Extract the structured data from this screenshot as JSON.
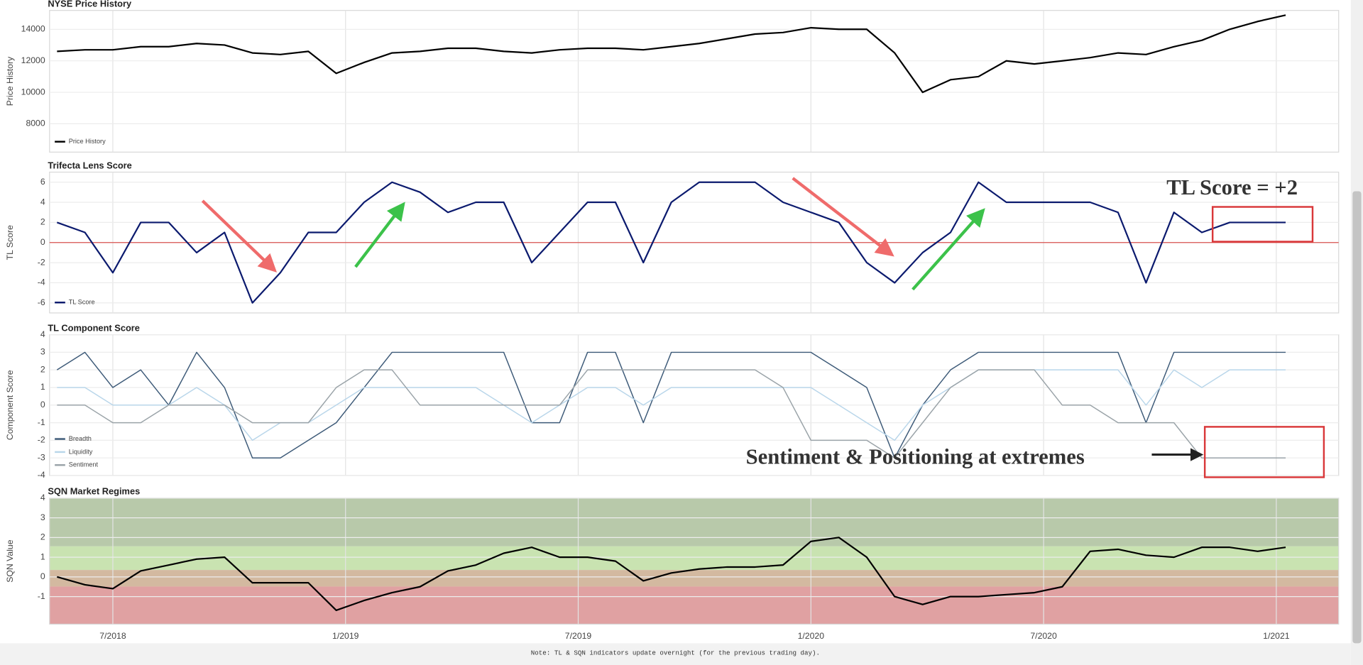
{
  "chart_data": [
    {
      "type": "line",
      "title": "NYSE Price History",
      "ylabel": "Price History",
      "legend": "lower left",
      "grid": true,
      "xlim": [
        2018.364,
        2021.134
      ],
      "x": [
        2018.38,
        2018.44,
        2018.5,
        2018.56,
        2018.62,
        2018.68,
        2018.74,
        2018.8,
        2018.86,
        2018.92,
        2018.98,
        2019.04,
        2019.1,
        2019.16,
        2019.22,
        2019.28,
        2019.34,
        2019.4,
        2019.46,
        2019.52,
        2019.58,
        2019.64,
        2019.7,
        2019.76,
        2019.82,
        2019.88,
        2019.94,
        2020,
        2020.06,
        2020.12,
        2020.18,
        2020.24,
        2020.3,
        2020.36,
        2020.42,
        2020.48,
        2020.54,
        2020.6,
        2020.66,
        2020.72,
        2020.78,
        2020.84,
        2020.9,
        2020.96,
        2021.02
      ],
      "ylim": [
        6200,
        15200
      ],
      "yticks": [
        8000,
        10000,
        12000,
        14000
      ],
      "series": [
        {
          "name": "Price History",
          "color": "#000000",
          "values": [
            12600,
            12700,
            12700,
            12900,
            12900,
            13100,
            13000,
            12500,
            12400,
            12600,
            11200,
            11900,
            12500,
            12600,
            12800,
            12800,
            12600,
            12500,
            12700,
            12800,
            12800,
            12700,
            12900,
            13100,
            13400,
            13700,
            13800,
            14100,
            14000,
            14000,
            12500,
            10000,
            10800,
            11000,
            12000,
            11800,
            12000,
            12200,
            12500,
            12400,
            12900,
            13300,
            14000,
            14500,
            14900
          ]
        }
      ]
    },
    {
      "type": "line",
      "title": "Trifecta Lens Score",
      "ylabel": "TL Score",
      "legend": "lower left",
      "grid": true,
      "xlim": [
        2018.364,
        2021.134
      ],
      "x": [
        2018.38,
        2018.44,
        2018.5,
        2018.56,
        2018.62,
        2018.68,
        2018.74,
        2018.8,
        2018.86,
        2018.92,
        2018.98,
        2019.04,
        2019.1,
        2019.16,
        2019.22,
        2019.28,
        2019.34,
        2019.4,
        2019.46,
        2019.52,
        2019.58,
        2019.64,
        2019.7,
        2019.76,
        2019.82,
        2019.88,
        2019.94,
        2020,
        2020.06,
        2020.12,
        2020.18,
        2020.24,
        2020.3,
        2020.36,
        2020.42,
        2020.48,
        2020.54,
        2020.6,
        2020.66,
        2020.72,
        2020.78,
        2020.84,
        2020.9,
        2020.96,
        2021.02
      ],
      "ylim": [
        -7,
        7
      ],
      "yticks": [
        -6,
        -4,
        -2,
        0,
        2,
        4,
        6
      ],
      "hline": {
        "value": 0,
        "color": "#d9534f"
      },
      "annotation": "TL Score = +2",
      "series": [
        {
          "name": "TL Score",
          "color": "#0b1a6e",
          "values": [
            2,
            1,
            -3,
            2,
            2,
            -1,
            1,
            -6,
            -3,
            1,
            1,
            4,
            6,
            5,
            3,
            4,
            4,
            -2,
            1,
            4,
            4,
            -2,
            4,
            6,
            6,
            6,
            4,
            3,
            2,
            -2,
            -4,
            -1,
            1,
            6,
            4,
            4,
            4,
            4,
            3,
            -4,
            3,
            1,
            2,
            2,
            2
          ]
        }
      ]
    },
    {
      "type": "line",
      "title": "TL Component Score",
      "ylabel": "Component Score",
      "legend": "lower left",
      "grid": true,
      "xlim": [
        2018.364,
        2021.134
      ],
      "x": [
        2018.38,
        2018.44,
        2018.5,
        2018.56,
        2018.62,
        2018.68,
        2018.74,
        2018.8,
        2018.86,
        2018.92,
        2018.98,
        2019.04,
        2019.1,
        2019.16,
        2019.22,
        2019.28,
        2019.34,
        2019.4,
        2019.46,
        2019.52,
        2019.58,
        2019.64,
        2019.7,
        2019.76,
        2019.82,
        2019.88,
        2019.94,
        2020,
        2020.06,
        2020.12,
        2020.18,
        2020.24,
        2020.3,
        2020.36,
        2020.42,
        2020.48,
        2020.54,
        2020.6,
        2020.66,
        2020.72,
        2020.78,
        2020.84,
        2020.9,
        2020.96,
        2021.02
      ],
      "ylim": [
        -4,
        4
      ],
      "yticks": [
        -4,
        -3,
        -2,
        -1,
        0,
        1,
        2,
        3,
        4
      ],
      "annotation": "Sentiment & Positioning at extremes",
      "series": [
        {
          "name": "Breadth",
          "color": "#3d5a78",
          "values": [
            2,
            3,
            1,
            2,
            0,
            3,
            1,
            -3,
            -3,
            -2,
            -1,
            1,
            3,
            3,
            3,
            3,
            3,
            -1,
            -1,
            3,
            3,
            -1,
            3,
            3,
            3,
            3,
            3,
            3,
            2,
            1,
            -3,
            0,
            2,
            3,
            3,
            3,
            3,
            3,
            3,
            -1,
            3,
            3,
            3,
            3,
            3
          ]
        },
        {
          "name": "Liquidity",
          "color": "#b9d6ea",
          "values": [
            1,
            1,
            0,
            0,
            0,
            1,
            0,
            -2,
            -1,
            -1,
            0,
            1,
            1,
            1,
            1,
            1,
            0,
            -1,
            0,
            1,
            1,
            0,
            1,
            1,
            1,
            1,
            1,
            1,
            0,
            -1,
            -2,
            0,
            1,
            2,
            2,
            2,
            2,
            2,
            2,
            0,
            2,
            1,
            2,
            2,
            2
          ]
        },
        {
          "name": "Sentiment",
          "color": "#9aa3a8",
          "values": [
            0,
            0,
            -1,
            -1,
            0,
            0,
            0,
            -1,
            -1,
            -1,
            1,
            2,
            2,
            0,
            0,
            0,
            0,
            0,
            0,
            2,
            2,
            2,
            2,
            2,
            2,
            2,
            1,
            -2,
            -2,
            -2,
            -3,
            -1,
            1,
            2,
            2,
            2,
            0,
            0,
            -1,
            -1,
            -1,
            -3,
            -3,
            -3,
            -3
          ]
        }
      ]
    },
    {
      "type": "line",
      "title": "SQN Market Regimes",
      "ylabel": "SQN Value",
      "grid": true,
      "xlim": [
        2018.364,
        2021.134
      ],
      "xticks": [
        {
          "value": 2018.5,
          "label": "7/2018"
        },
        {
          "value": 2019,
          "label": "1/2019"
        },
        {
          "value": 2019.5,
          "label": "7/2019"
        },
        {
          "value": 2020,
          "label": "1/2020"
        },
        {
          "value": 2020.5,
          "label": "7/2020"
        },
        {
          "value": 2021,
          "label": "1/2021"
        }
      ],
      "x": [
        2018.38,
        2018.44,
        2018.5,
        2018.56,
        2018.62,
        2018.68,
        2018.74,
        2018.8,
        2018.86,
        2018.92,
        2018.98,
        2019.04,
        2019.1,
        2019.16,
        2019.22,
        2019.28,
        2019.34,
        2019.4,
        2019.46,
        2019.52,
        2019.58,
        2019.64,
        2019.7,
        2019.76,
        2019.82,
        2019.88,
        2019.94,
        2020,
        2020.06,
        2020.12,
        2020.18,
        2020.24,
        2020.3,
        2020.36,
        2020.42,
        2020.48,
        2020.54,
        2020.6,
        2020.66,
        2020.72,
        2020.78,
        2020.84,
        2020.9,
        2020.96,
        2021.02
      ],
      "ylim": [
        -2.4,
        4
      ],
      "yticks": [
        -1,
        0,
        1,
        2,
        3,
        4
      ],
      "bands": [
        {
          "from": 1.55,
          "to": 4,
          "color": "#b8c9aa"
        },
        {
          "from": 0.35,
          "to": 1.55,
          "color": "#c9e3b1"
        },
        {
          "from": -0.49,
          "to": 0.35,
          "color": "#d3b9a0"
        },
        {
          "from": -2.4,
          "to": -0.49,
          "color": "#e0a1a2"
        }
      ],
      "series": [
        {
          "name": "SQN",
          "color": "#000000",
          "values": [
            0,
            -0.4,
            -0.6,
            0.3,
            0.6,
            0.9,
            1.0,
            -0.3,
            -0.3,
            -0.3,
            -1.7,
            -1.2,
            -0.8,
            -0.5,
            0.3,
            0.6,
            1.2,
            1.5,
            1.0,
            1.0,
            0.8,
            -0.2,
            0.2,
            0.4,
            0.5,
            0.5,
            0.6,
            1.8,
            2.0,
            1.0,
            -1.0,
            -1.4,
            -1.0,
            -1.0,
            -0.9,
            -0.8,
            -0.5,
            1.3,
            1.4,
            1.1,
            1.0,
            1.5,
            1.5,
            1.3,
            1.5
          ]
        }
      ]
    }
  ],
  "note": "Note: TL & SQN indicators update overnight (for the previous trading day)."
}
